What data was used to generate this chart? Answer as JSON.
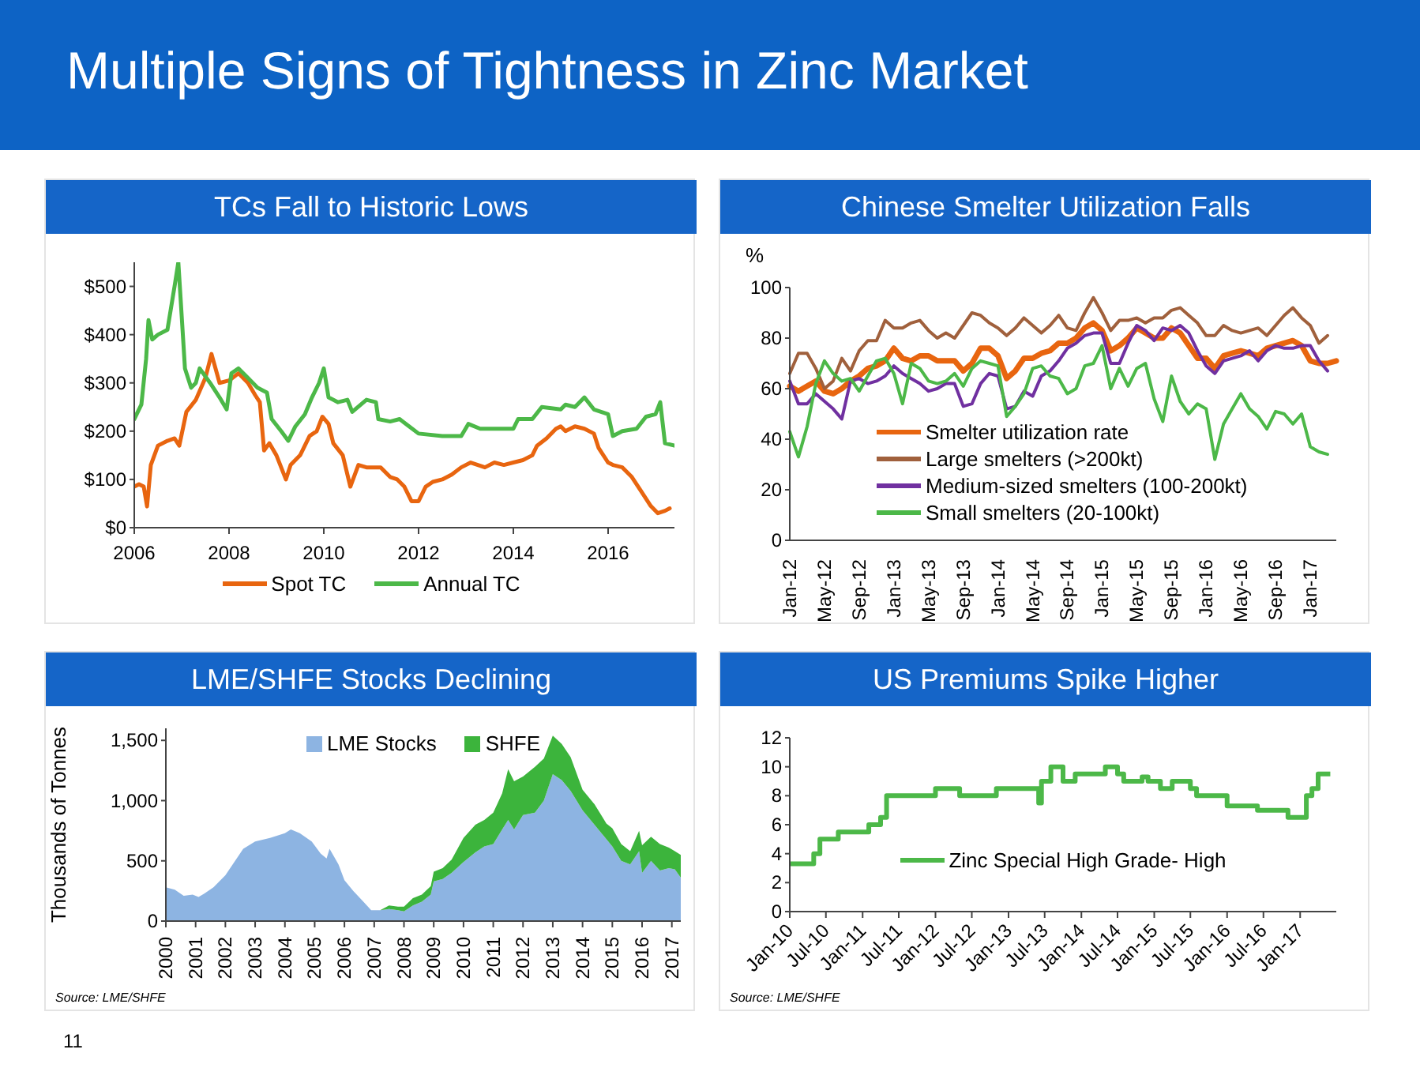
{
  "chart_data": [
    {
      "type": "other",
      "title": "Multiple Signs of Tightness in Zinc Market",
      "annotations": [
        "11"
      ]
    },
    {
      "type": "line",
      "title": "TCs Fall to Historic Lows",
      "xlim": [
        2006,
        2017.4
      ],
      "xticks": [
        2006,
        2008,
        2010,
        2012,
        2014,
        2016
      ],
      "ylim": [
        0,
        550
      ],
      "yticks": [
        {
          "value": 0,
          "label": "$0"
        },
        {
          "value": 100,
          "label": "$100"
        },
        {
          "value": 200,
          "label": "$200"
        },
        {
          "value": 300,
          "label": "$300"
        },
        {
          "value": 400,
          "label": "$400"
        },
        {
          "value": 500,
          "label": "$500"
        }
      ],
      "legend": "bottom",
      "marker": "none",
      "line_style": "solid",
      "series": [
        {
          "name": "Spot TC",
          "color": "#e8650f",
          "x": [
            2006,
            2006.1,
            2006.2,
            2006.27,
            2006.35,
            2006.5,
            2006.7,
            2006.85,
            2006.95,
            2007.1,
            2007.3,
            2007.5,
            2007.63,
            2007.8,
            2008,
            2008.2,
            2008.4,
            2008.55,
            2008.65,
            2008.74,
            2008.85,
            2009,
            2009.2,
            2009.3,
            2009.5,
            2009.7,
            2009.85,
            2009.97,
            2010.1,
            2010.2,
            2010.4,
            2010.56,
            2010.73,
            2010.9,
            2011.2,
            2011.4,
            2011.55,
            2011.7,
            2011.85,
            2012,
            2012.15,
            2012.3,
            2012.5,
            2012.7,
            2012.9,
            2013.1,
            2013.4,
            2013.6,
            2013.8,
            2014,
            2014.2,
            2014.4,
            2014.5,
            2014.7,
            2014.9,
            2015,
            2015.1,
            2015.3,
            2015.5,
            2015.7,
            2015.8,
            2016,
            2016.1,
            2016.3,
            2016.5,
            2016.7,
            2016.9,
            2017.05,
            2017.2,
            2017.3
          ],
          "values": [
            85,
            90,
            85,
            44,
            130,
            170,
            180,
            185,
            170,
            240,
            265,
            310,
            360,
            300,
            305,
            320,
            300,
            275,
            260,
            160,
            175,
            150,
            100,
            130,
            150,
            190,
            200,
            230,
            215,
            175,
            150,
            85,
            130,
            125,
            125,
            105,
            100,
            85,
            55,
            55,
            85,
            95,
            100,
            110,
            125,
            135,
            125,
            135,
            130,
            135,
            140,
            150,
            170,
            185,
            205,
            210,
            200,
            210,
            205,
            195,
            165,
            135,
            130,
            125,
            105,
            75,
            45,
            30,
            35,
            40
          ]
        },
        {
          "name": "Annual TC",
          "color": "#4cb848",
          "x": [
            2006,
            2006.15,
            2006.25,
            2006.3,
            2006.38,
            2006.5,
            2006.7,
            2006.85,
            2006.93,
            2007,
            2007.07,
            2007.2,
            2007.3,
            2007.38,
            2007.6,
            2007.8,
            2007.95,
            2008.05,
            2008.2,
            2008.4,
            2008.6,
            2008.8,
            2008.9,
            2009.1,
            2009.25,
            2009.4,
            2009.6,
            2009.75,
            2009.9,
            2010,
            2010.1,
            2010.3,
            2010.5,
            2010.6,
            2010.9,
            2011.1,
            2011.15,
            2011.4,
            2011.6,
            2011.8,
            2012,
            2012.5,
            2012.9,
            2013.05,
            2013.3,
            2013.7,
            2014,
            2014.1,
            2014.4,
            2014.6,
            2015,
            2015.1,
            2015.3,
            2015.5,
            2015.7,
            2016,
            2016.1,
            2016.3,
            2016.6,
            2016.8,
            2017,
            2017.1,
            2017.2,
            2017.4
          ],
          "values": [
            225,
            255,
            350,
            430,
            390,
            400,
            410,
            500,
            550,
            440,
            330,
            290,
            300,
            330,
            300,
            270,
            245,
            320,
            330,
            310,
            290,
            280,
            225,
            200,
            180,
            210,
            235,
            270,
            300,
            330,
            270,
            260,
            265,
            240,
            265,
            260,
            225,
            220,
            225,
            210,
            195,
            190,
            190,
            215,
            205,
            205,
            205,
            225,
            225,
            250,
            245,
            255,
            250,
            270,
            245,
            235,
            190,
            200,
            205,
            230,
            235,
            260,
            175,
            170
          ]
        }
      ]
    },
    {
      "type": "line",
      "title": "Chinese Smelter Utilization Falls",
      "ylabel": "%",
      "ylim": [
        0,
        100
      ],
      "yticks": [
        0,
        20,
        40,
        60,
        80,
        100
      ],
      "legend": "bottom left",
      "marker": "none",
      "line_style": "solid",
      "categories": [
        "Jan-12",
        null,
        null,
        null,
        "May-12",
        null,
        null,
        null,
        "Sep-12",
        null,
        null,
        null,
        "Jan-13",
        null,
        null,
        null,
        "May-13",
        null,
        null,
        null,
        "Sep-13",
        null,
        null,
        null,
        "Jan-14",
        null,
        null,
        null,
        "May-14",
        null,
        null,
        null,
        "Sep-14",
        null,
        null,
        null,
        "Jan-15",
        null,
        null,
        null,
        "May-15",
        null,
        null,
        null,
        "Sep-15",
        null,
        null,
        null,
        "Jan-16",
        null,
        null,
        null,
        "May-16",
        null,
        null,
        null,
        "Sep-16",
        null,
        null,
        null,
        "Jan-17",
        null,
        null,
        null
      ],
      "series": [
        {
          "name": "Smelter utilization rate",
          "color": "#e8650f",
          "values": [
            61,
            59,
            61,
            63,
            59,
            58,
            60,
            63,
            65,
            68,
            69,
            71,
            76,
            72,
            71,
            73,
            73,
            71,
            71,
            71,
            67,
            70,
            76,
            76,
            73,
            64,
            67,
            72,
            72,
            74,
            75,
            78,
            78,
            80,
            84,
            86,
            83,
            75,
            77,
            80,
            84,
            82,
            80,
            80,
            84,
            82,
            77,
            72,
            72,
            68,
            73,
            74,
            75,
            74,
            73,
            76,
            77,
            78,
            79,
            77,
            71,
            70,
            70,
            71
          ]
        },
        {
          "name": "Large smelters (>200kt)",
          "color": "#a0603c",
          "values": [
            66,
            74,
            74,
            68,
            60,
            63,
            72,
            67,
            75,
            79,
            79,
            87,
            84,
            84,
            86,
            87,
            83,
            80,
            82,
            80,
            85,
            90,
            89,
            86,
            84,
            81,
            84,
            88,
            85,
            82,
            85,
            89,
            84,
            83,
            90,
            96,
            90,
            83,
            87,
            87,
            88,
            86,
            88,
            88,
            91,
            92,
            89,
            86,
            81,
            81,
            85,
            83,
            82,
            83,
            84,
            81,
            85,
            89,
            92,
            88,
            85,
            78,
            81,
            null
          ]
        },
        {
          "name": "Medium-sized smelters (100-200kt)",
          "color": "#7030a0",
          "values": [
            63,
            54,
            54,
            58,
            55,
            52,
            48,
            63,
            64,
            62,
            63,
            65,
            69,
            66,
            64,
            62,
            59,
            60,
            62,
            62,
            53,
            54,
            62,
            66,
            65,
            52,
            53,
            59,
            57,
            65,
            67,
            71,
            76,
            78,
            81,
            82,
            82,
            70,
            70,
            78,
            85,
            83,
            79,
            84,
            83,
            85,
            82,
            75,
            69,
            66,
            71,
            72,
            73,
            75,
            71,
            75,
            77,
            76,
            76,
            77,
            77,
            71,
            67,
            null
          ]
        },
        {
          "name": "Small smelters (20-100kt)",
          "color": "#4cb848",
          "values": [
            43,
            33,
            45,
            62,
            71,
            66,
            63,
            64,
            59,
            65,
            71,
            72,
            66,
            54,
            70,
            68,
            63,
            62,
            63,
            66,
            61,
            68,
            71,
            70,
            69,
            49,
            53,
            58,
            68,
            69,
            65,
            64,
            58,
            60,
            69,
            70,
            77,
            60,
            68,
            61,
            68,
            70,
            56,
            47,
            65,
            55,
            50,
            54,
            52,
            32,
            46,
            52,
            58,
            52,
            49,
            44,
            51,
            50,
            46,
            50,
            37,
            35,
            34,
            null
          ]
        }
      ]
    },
    {
      "type": "area",
      "title": "LME/SHFE Stocks Declining",
      "ylabel": "Thousands of Tonnes",
      "stacked": true,
      "xlim": [
        2000,
        2017.3
      ],
      "xticks": [
        2000,
        2001,
        2002,
        2003,
        2004,
        2005,
        2006,
        2007,
        2008,
        2009,
        2010,
        2011,
        2012,
        2013,
        2014,
        2015,
        2016,
        2017
      ],
      "ylim": [
        0,
        1600
      ],
      "yticks": [
        0,
        500,
        {
          "value": 1000,
          "label": "1,000"
        },
        {
          "value": 1500,
          "label": "1,500"
        }
      ],
      "legend": "top",
      "annotations": [
        "Source: LME/SHFE"
      ],
      "x": [
        2000,
        2000.3,
        2000.6,
        2000.9,
        2001.1,
        2001.3,
        2001.6,
        2002,
        2002.3,
        2002.6,
        2003,
        2003.5,
        2004,
        2004.2,
        2004.5,
        2004.9,
        2005.2,
        2005.4,
        2005.5,
        2005.8,
        2006,
        2006.3,
        2006.6,
        2006.9,
        2007.2,
        2007.5,
        2007.8,
        2008,
        2008.3,
        2008.6,
        2008.9,
        2009,
        2009.3,
        2009.6,
        2010,
        2010.4,
        2010.7,
        2011,
        2011.3,
        2011.5,
        2011.7,
        2012,
        2012.4,
        2012.7,
        2013,
        2013.3,
        2013.6,
        2014,
        2014.4,
        2014.8,
        2015,
        2015.3,
        2015.6,
        2015.9,
        2016,
        2016.3,
        2016.6,
        2016.9,
        2017.1,
        2017.3
      ],
      "series": [
        {
          "name": "LME Stocks",
          "color": "#8db4e2",
          "values": [
            280,
            260,
            210,
            220,
            200,
            230,
            280,
            380,
            490,
            600,
            660,
            690,
            730,
            760,
            730,
            660,
            560,
            520,
            600,
            470,
            340,
            250,
            170,
            90,
            90,
            100,
            90,
            80,
            130,
            160,
            220,
            330,
            350,
            400,
            490,
            570,
            620,
            640,
            760,
            840,
            760,
            880,
            900,
            1000,
            1220,
            1170,
            1080,
            920,
            800,
            680,
            620,
            500,
            470,
            580,
            400,
            500,
            420,
            440,
            430,
            360
          ]
        },
        {
          "name": "SHFE",
          "color": "#3cb43c",
          "values": [
            0,
            0,
            0,
            0,
            0,
            0,
            0,
            0,
            0,
            0,
            0,
            0,
            0,
            0,
            0,
            0,
            0,
            0,
            0,
            0,
            0,
            0,
            0,
            0,
            0,
            30,
            30,
            40,
            60,
            60,
            70,
            80,
            90,
            110,
            200,
            230,
            220,
            260,
            300,
            420,
            400,
            320,
            380,
            350,
            320,
            300,
            280,
            170,
            170,
            130,
            150,
            140,
            110,
            170,
            230,
            200,
            220,
            170,
            150,
            190
          ]
        }
      ]
    },
    {
      "type": "step",
      "title": "US Premiums Spike Higher",
      "xlim": [
        "2010-01",
        "2017-07"
      ],
      "xticks": [
        {
          "value": "2010-01",
          "label": "Jan-10"
        },
        {
          "value": "2010-07",
          "label": "Jul-10"
        },
        {
          "value": "2011-01",
          "label": "Jan-11"
        },
        {
          "value": "2011-07",
          "label": "Jul-11"
        },
        {
          "value": "2012-01",
          "label": "Jan-12"
        },
        {
          "value": "2012-07",
          "label": "Jul-12"
        },
        {
          "value": "2013-01",
          "label": "Jan-13"
        },
        {
          "value": "2013-07",
          "label": "Jul-13"
        },
        {
          "value": "2014-01",
          "label": "Jan-14"
        },
        {
          "value": "2014-07",
          "label": "Jul-14"
        },
        {
          "value": "2015-01",
          "label": "Jan-15"
        },
        {
          "value": "2015-07",
          "label": "Jul-15"
        },
        {
          "value": "2016-01",
          "label": "Jan-16"
        },
        {
          "value": "2016-07",
          "label": "Jul-16"
        },
        {
          "value": "2017-01",
          "label": "Jan-17"
        }
      ],
      "ylim": [
        0,
        12
      ],
      "yticks": [
        0,
        2,
        4,
        6,
        8,
        10,
        12
      ],
      "legend": "bottom",
      "marker": "none",
      "line_style": "solid",
      "annotations": [
        "Source: LME/SHFE"
      ],
      "x": [
        "2010-01",
        "2010-05",
        "2010-06",
        "2010-09",
        "2011-02",
        "2011-04",
        "2011-05",
        "2012-01",
        "2012-05",
        "2012-11",
        "2013-06",
        "2013-06-15",
        "2013-08",
        "2013-10",
        "2013-12",
        "2014-05",
        "2014-07",
        "2014-08",
        "2014-11",
        "2014-12",
        "2015-02",
        "2015-04",
        "2015-07",
        "2015-08",
        "2016-01",
        "2016-06",
        "2016-11",
        "2017-02",
        "2017-03",
        "2017-04",
        "2017-06"
      ],
      "series": [
        {
          "name": "Zinc Special High Grade- High",
          "color": "#4cb848",
          "values": [
            3.3,
            4,
            5,
            5.5,
            6,
            6.5,
            8,
            8.5,
            8,
            8.5,
            7.5,
            9,
            10,
            9,
            9.5,
            10,
            9.5,
            9,
            9.3,
            9,
            8.5,
            9,
            8.5,
            8,
            7.3,
            7,
            6.5,
            8,
            8.5,
            9.5,
            9.5
          ]
        }
      ]
    }
  ]
}
